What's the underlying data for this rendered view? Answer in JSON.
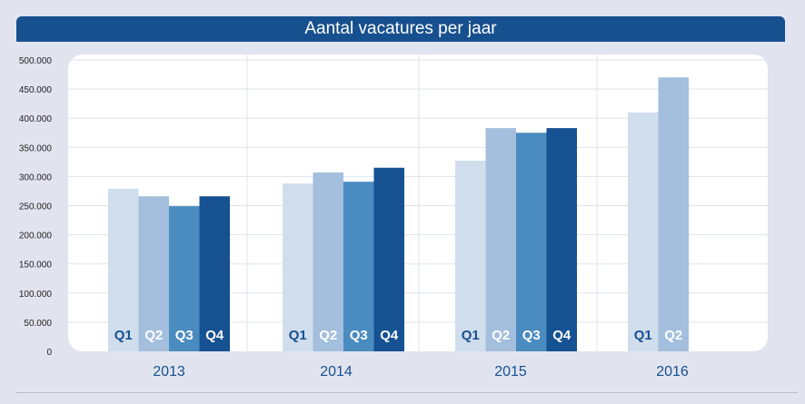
{
  "chart_data": {
    "type": "bar",
    "title": "Aantal vacatures per jaar",
    "xlabel": "",
    "ylabel": "",
    "ylim": [
      0,
      500000
    ],
    "yticks": [
      "0",
      "50.000",
      "100.000",
      "150.000",
      "200.000",
      "250.000",
      "300.000",
      "350.000",
      "400.000",
      "450.000",
      "500.000"
    ],
    "categories": [
      "2013",
      "2014",
      "2015",
      "2016"
    ],
    "series": [
      {
        "name": "Q1",
        "color": "#d0ddec",
        "label_color": "#17508f",
        "values": [
          279000,
          288000,
          327000,
          410000
        ]
      },
      {
        "name": "Q2",
        "color": "#a4bedd",
        "label_color": "#ffffff",
        "values": [
          266000,
          307000,
          383000,
          470000
        ]
      },
      {
        "name": "Q3",
        "color": "#4a8bc0",
        "label_color": "#ffffff",
        "values": [
          249000,
          291000,
          375000,
          null
        ]
      },
      {
        "name": "Q4",
        "color": "#165192",
        "label_color": "#ffffff",
        "values": [
          266000,
          315000,
          383000,
          null
        ]
      }
    ],
    "grid": true,
    "legend": "none"
  }
}
